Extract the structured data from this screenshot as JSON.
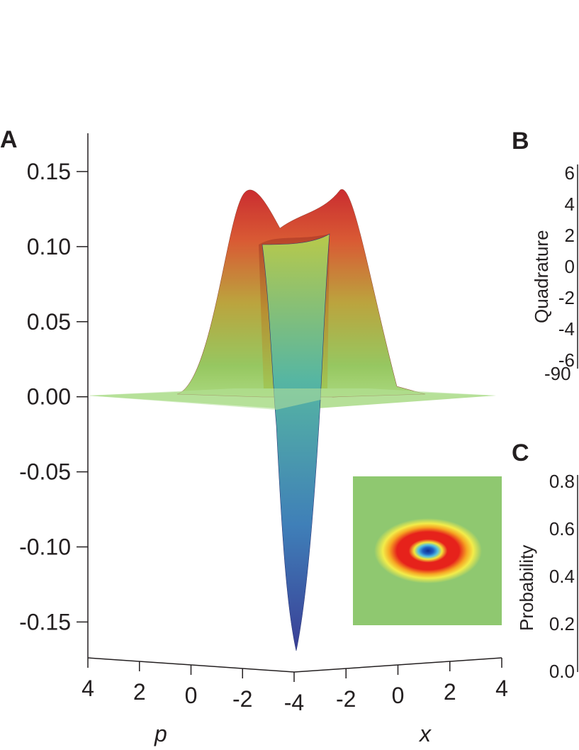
{
  "panels": {
    "A": {
      "letter": "A"
    },
    "B": {
      "letter": "B",
      "ylabel": "Quadrature",
      "yticks": [
        "6",
        "4",
        "2",
        "0",
        "-2",
        "-4",
        "-6"
      ],
      "xtick_partial": "-90"
    },
    "C": {
      "letter": "C",
      "ylabel": "Probability",
      "yticks": [
        "0.8",
        "0.6",
        "0.4",
        "0.2",
        "0.0"
      ]
    }
  },
  "chart_data": {
    "type": "surface",
    "title": "",
    "zlabel": "",
    "zticks": [
      "0.15",
      "0.10",
      "0.05",
      "0.00",
      "-0.05",
      "-0.10",
      "-0.15"
    ],
    "zlim": [
      -0.17,
      0.17
    ],
    "p_axis": {
      "label": "p",
      "ticks": [
        "4",
        "2",
        "0",
        "-2",
        "-4"
      ],
      "range": [
        -4,
        4
      ]
    },
    "x_axis": {
      "label": "x",
      "ticks": [
        "-2",
        "0",
        "2",
        "4"
      ],
      "range": [
        -4,
        4
      ]
    },
    "surface": {
      "description": "Wigner function with central negative dip surrounded by positive ring",
      "central_value": -0.17,
      "ring_peak": 0.14,
      "baseline": 0.0
    },
    "inset": {
      "type": "heatmap",
      "description": "top view of Wigner function: green background, red ring, blue center"
    },
    "colors": {
      "low": "#3a4ea0",
      "mid": "#a4d067",
      "high": "#d0312d",
      "inset_bg": "#8fc870"
    }
  }
}
